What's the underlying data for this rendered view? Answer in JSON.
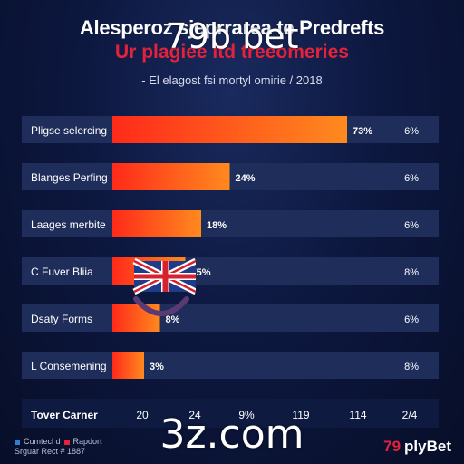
{
  "header": {
    "title": "Alesperoz sjeprrarea te Predrefts",
    "subtitle": "Ur plagiee ltd treeomeries",
    "caption": "- El elagost fsi mortyl omirie / 2018"
  },
  "watermarks": {
    "top": "79b bet",
    "bottom": "3z.com"
  },
  "chart_data": {
    "type": "bar",
    "orientation": "horizontal",
    "categories": [
      "Pligse selercing",
      "Blanges Perfing",
      "Laages merbite",
      "C Fuver Bliia",
      "Dsaty Forms",
      "L Consemening"
    ],
    "values": [
      73,
      24,
      18,
      75,
      8,
      3
    ],
    "value_labels": [
      "73%",
      "24%",
      "18%",
      "75%",
      "8%",
      "3%"
    ],
    "right_labels": [
      "6%",
      "6%",
      "6%",
      "8%",
      "6%",
      "8%"
    ],
    "bar_lengths": [
      0.74,
      0.37,
      0.28,
      0.23,
      0.15,
      0.1
    ],
    "footer": {
      "label": "Tover Carner",
      "values": [
        "20",
        "24",
        "9%",
        "119",
        "114",
        "2/4"
      ]
    },
    "bar_color_start": "#ff2a1a",
    "bar_color_end": "#ff8a1e",
    "row_color": "#1e2d5a"
  },
  "legend": {
    "items": [
      {
        "text": "Cumtecl d",
        "color": "#2f7fd8"
      },
      {
        "text": "Rapdort",
        "color": "#e6213a"
      }
    ],
    "line2": "Srguar Rect # 1887"
  },
  "brand": {
    "number": "79",
    "text": "plyBet"
  }
}
